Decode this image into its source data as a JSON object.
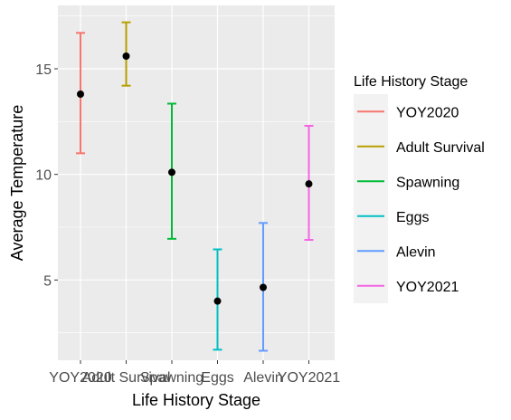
{
  "chart_data": {
    "type": "errorbar",
    "xlabel": "Life History Stage",
    "ylabel": "Average Temperature",
    "legend_title": "Life History Stage",
    "legend_position": "right",
    "grid": true,
    "ylim": [
      1.2,
      18.0
    ],
    "yticks": [
      5,
      10,
      15
    ],
    "ytick_labels": [
      "5",
      "10",
      "15"
    ],
    "categories": [
      "YOY2020",
      "Adult Survival",
      "Spawning",
      "Eggs",
      "Alevin",
      "YOY2021"
    ],
    "series": [
      {
        "name": "YOY2020",
        "mean": 13.8,
        "lower": 11.0,
        "upper": 16.7,
        "color": "#F8766D"
      },
      {
        "name": "Adult Survival",
        "mean": 15.6,
        "lower": 14.2,
        "upper": 17.2,
        "color": "#B79F00"
      },
      {
        "name": "Spawning",
        "mean": 10.1,
        "lower": 6.95,
        "upper": 13.35,
        "color": "#00BA38"
      },
      {
        "name": "Eggs",
        "mean": 4.0,
        "lower": 1.7,
        "upper": 6.45,
        "color": "#00BFC4"
      },
      {
        "name": "Alevin",
        "mean": 4.65,
        "lower": 1.65,
        "upper": 7.7,
        "color": "#619CFF"
      },
      {
        "name": "YOY2021",
        "mean": 9.55,
        "lower": 6.9,
        "upper": 12.3,
        "color": "#F564E3"
      }
    ],
    "panel_background": "#EBEBEB",
    "grid_color": "#FFFFFF",
    "point_color": "#000000"
  }
}
